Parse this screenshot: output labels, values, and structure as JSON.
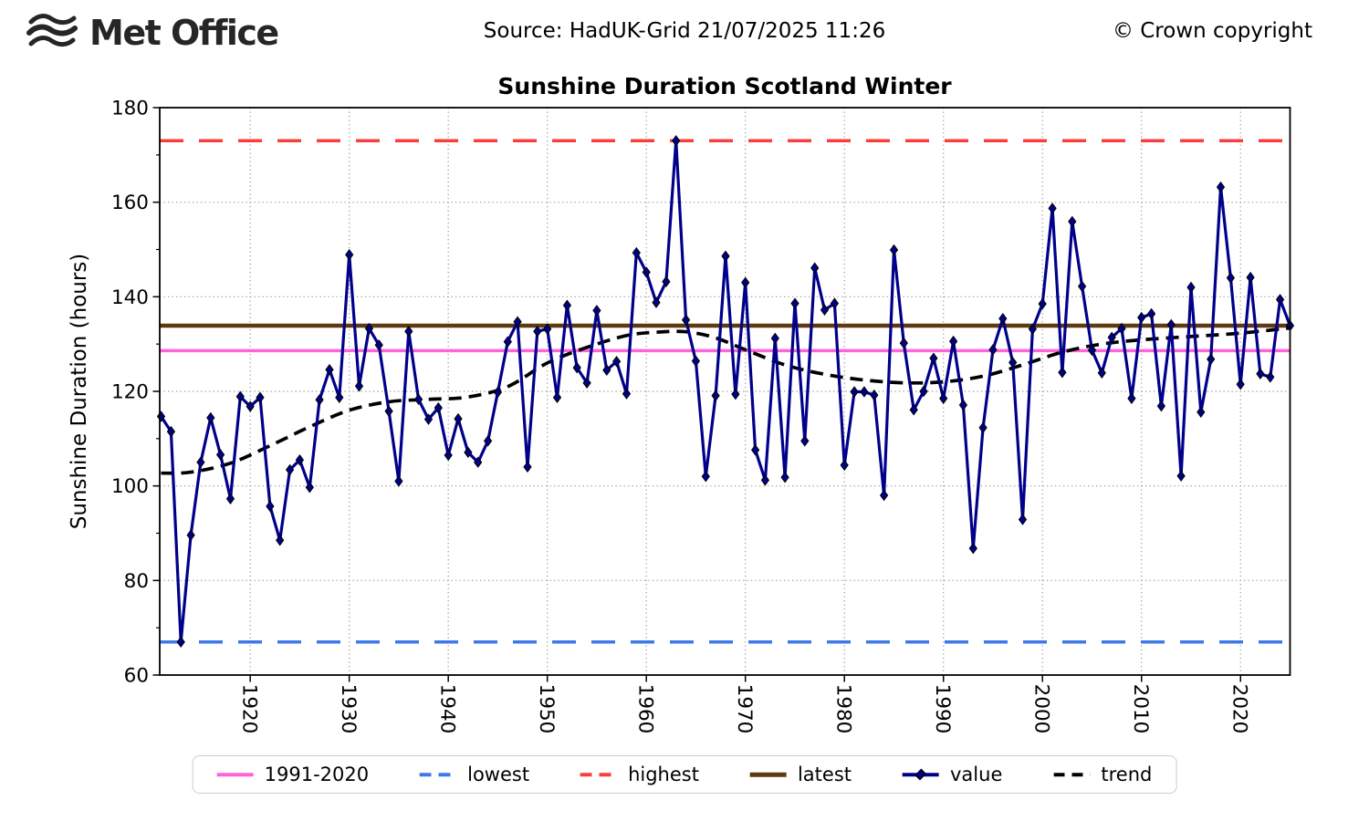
{
  "header": {
    "logo_text": "Met Office",
    "source": "Source: HadUK-Grid 21/07/2025 11:26",
    "copyright": "© Crown copyright"
  },
  "chart_data": {
    "type": "line",
    "title": "Sunshine Duration Scotland Winter",
    "xlabel": "",
    "ylabel": "Sunshine Duration (hours)",
    "xlim": [
      1911,
      2025
    ],
    "ylim": [
      60,
      180
    ],
    "yticks": [
      60,
      80,
      100,
      120,
      140,
      160,
      180
    ],
    "yticks_minor": [
      70,
      90,
      110,
      130,
      150,
      170
    ],
    "xticks": [
      1920,
      1930,
      1940,
      1950,
      1960,
      1970,
      1980,
      1990,
      2000,
      2010,
      2020
    ],
    "grid": true,
    "legend_position": "bottom",
    "x_start": 1911,
    "x_end": 2025,
    "values": [
      114.7,
      111.5,
      67.0,
      89.6,
      105.0,
      114.4,
      106.6,
      97.3,
      118.9,
      116.8,
      118.7,
      95.7,
      88.5,
      103.4,
      105.5,
      99.7,
      118.2,
      124.6,
      118.7,
      148.9,
      121.1,
      133.3,
      129.8,
      115.8,
      101.0,
      132.7,
      118.3,
      114.1,
      116.5,
      106.5,
      114.2,
      107.1,
      105.0,
      109.5,
      119.8,
      130.5,
      134.7,
      104.0,
      132.7,
      133.2,
      118.7,
      138.2,
      125.0,
      121.8,
      137.1,
      124.5,
      126.3,
      119.5,
      149.3,
      145.2,
      138.8,
      143.2,
      173.0,
      135.1,
      126.4,
      102.0,
      119.1,
      148.6,
      119.4,
      143.0,
      107.6,
      101.2,
      131.2,
      101.8,
      138.6,
      109.5,
      146.1,
      137.2,
      138.6,
      104.4,
      119.9,
      119.9,
      119.2,
      98.0,
      149.9,
      130.2,
      116.1,
      120.0,
      127.0,
      118.5,
      130.6,
      117.1,
      86.8,
      112.3,
      128.8,
      135.4,
      126.1,
      92.9,
      133.2,
      138.5,
      158.7,
      124.0,
      155.9,
      142.2,
      128.7,
      123.9,
      131.4,
      133.3,
      118.5,
      135.6,
      136.4,
      116.9,
      134.1,
      102.1,
      142.0,
      115.6,
      126.8,
      163.2,
      144.0,
      121.5,
      144.1,
      123.7,
      123.0,
      139.4,
      133.9
    ],
    "trend": {
      "x": [
        1911,
        1914,
        1918,
        1922,
        1926,
        1930,
        1934,
        1938,
        1942,
        1946,
        1950,
        1954,
        1958,
        1961,
        1964,
        1967,
        1970,
        1974,
        1978,
        1982,
        1986,
        1990,
        1994,
        1998,
        2002,
        2006,
        2010,
        2015,
        2020,
        2025
      ],
      "y": [
        102.7,
        102.9,
        104.8,
        108.5,
        112.5,
        116.0,
        117.8,
        118.3,
        118.8,
        121.0,
        126.0,
        129.3,
        131.8,
        132.5,
        132.6,
        131.3,
        128.8,
        125.6,
        123.6,
        122.4,
        121.8,
        122.0,
        123.2,
        125.6,
        128.3,
        130.0,
        130.9,
        131.6,
        132.3,
        133.4
      ]
    },
    "reference_lines": [
      {
        "name": "1991-2020",
        "value": 128.6,
        "color": "#ff63dc",
        "style": "solid"
      },
      {
        "name": "lowest",
        "value": 67.0,
        "color": "#3d79e8",
        "style": "dashed"
      },
      {
        "name": "highest",
        "value": 173.0,
        "color": "#fa3d3d",
        "style": "dashed"
      },
      {
        "name": "latest",
        "value": 133.9,
        "color": "#5e3a10",
        "style": "solid"
      }
    ],
    "series_colors": {
      "value": "#00008b",
      "trend": "#000000"
    },
    "grid_color": "#999999"
  },
  "legend": {
    "items": [
      {
        "label": "1991-2020",
        "color": "#ff63dc",
        "style": "solid"
      },
      {
        "label": "lowest",
        "color": "#3d79e8",
        "style": "dashed"
      },
      {
        "label": "highest",
        "color": "#fa3d3d",
        "style": "dashed"
      },
      {
        "label": "latest",
        "color": "#5e3a10",
        "style": "solid-thick"
      },
      {
        "label": "value",
        "color": "#00008b",
        "style": "marker-line"
      },
      {
        "label": "trend",
        "color": "#000000",
        "style": "dashed-thin"
      }
    ]
  }
}
